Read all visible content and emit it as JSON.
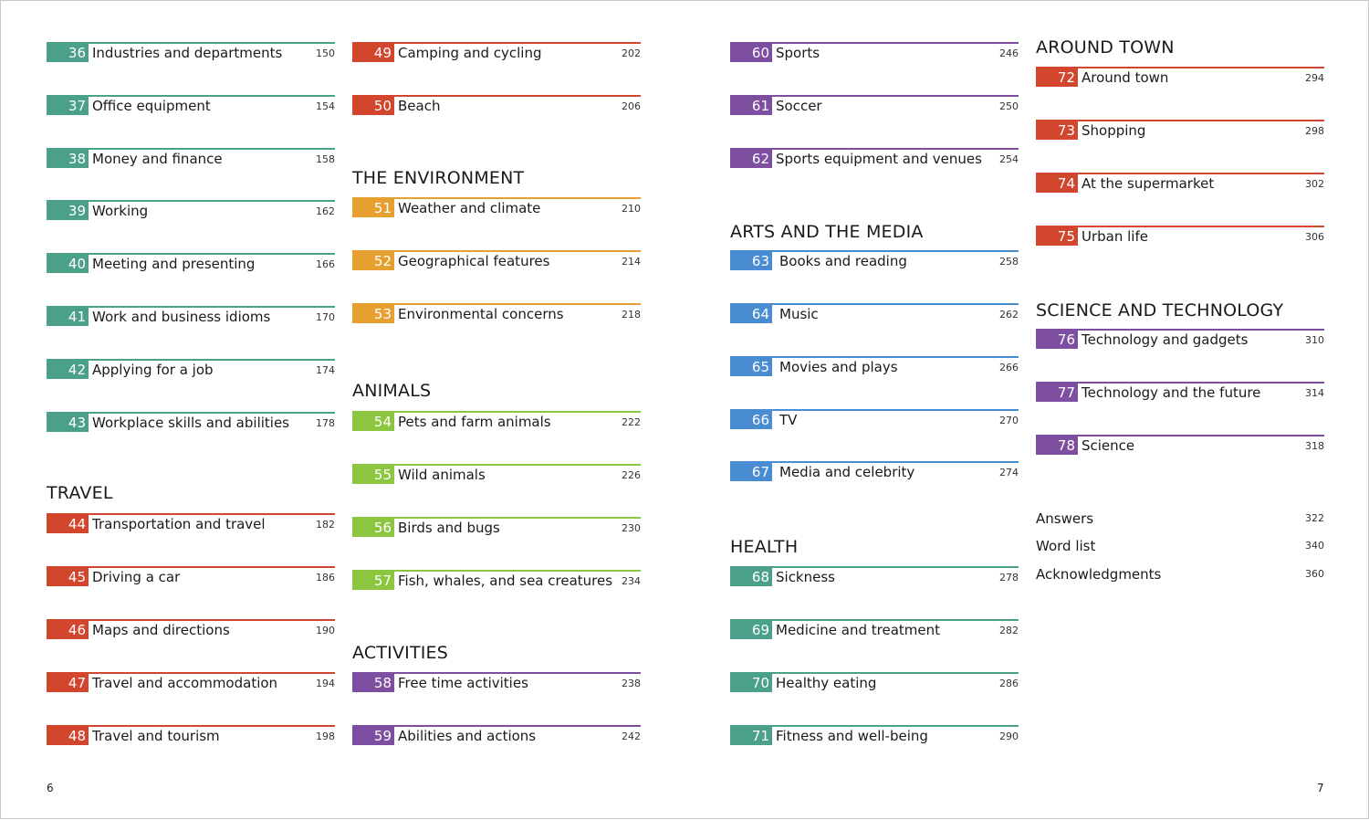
{
  "colors": {
    "teal": "#4aa088",
    "red": "#d2462e",
    "orange": "#e5a030",
    "green": "#8cc540",
    "purple": "#7e4fa0",
    "blue": "#4a8cd2"
  },
  "headings": {
    "travel": "TRAVEL",
    "environment": "THE ENVIRONMENT",
    "animals": "ANIMALS",
    "activities": "ACTIVITIES",
    "arts_media": "ARTS AND THE MEDIA",
    "health": "HEALTH",
    "around_town": "AROUND TOWN",
    "science_tech": "SCIENCE AND TECHNOLOGY"
  },
  "entries": [
    {
      "num": "36",
      "title": "Industries and departments",
      "page": "150"
    },
    {
      "num": "37",
      "title": "Office equipment",
      "page": "154"
    },
    {
      "num": "38",
      "title": "Money and finance",
      "page": "158"
    },
    {
      "num": "39",
      "title": "Working",
      "page": "162"
    },
    {
      "num": "40",
      "title": "Meeting and presenting",
      "page": "166"
    },
    {
      "num": "41",
      "title": "Work and business idioms",
      "page": "170"
    },
    {
      "num": "42",
      "title": "Applying for a job",
      "page": "174"
    },
    {
      "num": "43",
      "title": "Workplace skills and abilities",
      "page": "178"
    },
    {
      "num": "44",
      "title": "Transportation and travel",
      "page": "182"
    },
    {
      "num": "45",
      "title": "Driving a car",
      "page": "186"
    },
    {
      "num": "46",
      "title": "Maps and directions",
      "page": "190"
    },
    {
      "num": "47",
      "title": "Travel and accommodation",
      "page": "194"
    },
    {
      "num": "48",
      "title": "Travel and tourism",
      "page": "198"
    },
    {
      "num": "49",
      "title": "Camping and cycling",
      "page": "202"
    },
    {
      "num": "50",
      "title": "Beach",
      "page": "206"
    },
    {
      "num": "51",
      "title": "Weather and climate",
      "page": "210"
    },
    {
      "num": "52",
      "title": "Geographical features",
      "page": "214"
    },
    {
      "num": "53",
      "title": "Environmental concerns",
      "page": "218"
    },
    {
      "num": "54",
      "title": "Pets and farm animals",
      "page": "222"
    },
    {
      "num": "55",
      "title": "Wild animals",
      "page": "226"
    },
    {
      "num": "56",
      "title": "Birds and bugs",
      "page": "230"
    },
    {
      "num": "57",
      "title": "Fish, whales, and sea creatures",
      "page": "234"
    },
    {
      "num": "58",
      "title": "Free time activities",
      "page": "238"
    },
    {
      "num": "59",
      "title": "Abilities and actions",
      "page": "242"
    },
    {
      "num": "60",
      "title": "Sports",
      "page": "246"
    },
    {
      "num": "61",
      "title": "Soccer",
      "page": "250"
    },
    {
      "num": "62",
      "title": "Sports equipment and venues",
      "page": "254"
    },
    {
      "num": "63",
      "title": "Books and reading",
      "page": "258"
    },
    {
      "num": "64",
      "title": "Music",
      "page": "262"
    },
    {
      "num": "65",
      "title": "Movies and plays",
      "page": "266"
    },
    {
      "num": "66",
      "title": "TV",
      "page": "270"
    },
    {
      "num": "67",
      "title": "Media and celebrity",
      "page": "274"
    },
    {
      "num": "68",
      "title": "Sickness",
      "page": "278"
    },
    {
      "num": "69",
      "title": "Medicine and treatment",
      "page": "282"
    },
    {
      "num": "70",
      "title": "Healthy eating",
      "page": "286"
    },
    {
      "num": "71",
      "title": "Fitness and well-being",
      "page": "290"
    },
    {
      "num": "72",
      "title": "Around town",
      "page": "294"
    },
    {
      "num": "73",
      "title": "Shopping",
      "page": "298"
    },
    {
      "num": "74",
      "title": "At the supermarket",
      "page": "302"
    },
    {
      "num": "75",
      "title": "Urban life",
      "page": "306"
    },
    {
      "num": "76",
      "title": "Technology and gadgets",
      "page": "310"
    },
    {
      "num": "77",
      "title": "Technology and the future",
      "page": "314"
    },
    {
      "num": "78",
      "title": "Science",
      "page": "318"
    }
  ],
  "extras": [
    {
      "title": "Answers",
      "page": "322"
    },
    {
      "title": "Word list",
      "page": "340"
    },
    {
      "title": "Acknowledgments",
      "page": "360"
    }
  ],
  "folios": {
    "left": "6",
    "right": "7"
  }
}
